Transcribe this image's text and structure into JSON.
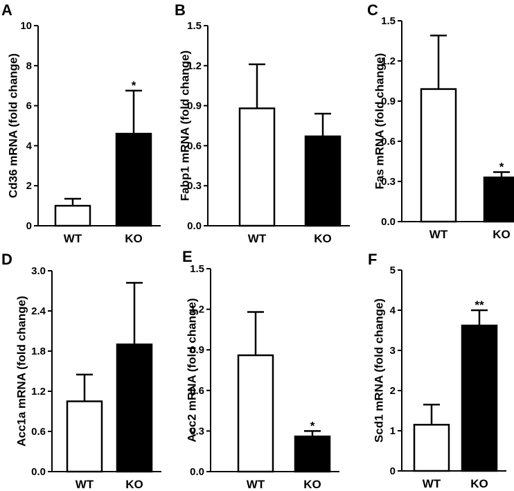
{
  "chart_data": [
    {
      "panel": "A",
      "type": "bar",
      "categories": [
        "WT",
        "KO"
      ],
      "values": [
        1.0,
        4.6
      ],
      "errors": [
        0.35,
        2.15
      ],
      "significance": [
        "",
        "*"
      ],
      "ylabel": "Cd36 mRNA (fold change)",
      "ylim": [
        0,
        10
      ],
      "yticks": [
        "0",
        "2",
        "4",
        "6",
        "8",
        "10"
      ],
      "colors": [
        "#ffffff",
        "#000000"
      ],
      "grid": false
    },
    {
      "panel": "B",
      "type": "bar",
      "categories": [
        "WT",
        "KO"
      ],
      "values": [
        0.88,
        0.67
      ],
      "errors": [
        0.33,
        0.17
      ],
      "significance": [
        "",
        ""
      ],
      "ylabel": "Fabp1 mRNA (fold change)",
      "ylim": [
        0,
        1.5
      ],
      "yticks": [
        "0.0",
        "0.3",
        "0.6",
        "0.9",
        "1.2",
        "1.5"
      ],
      "colors": [
        "#ffffff",
        "#000000"
      ],
      "grid": false
    },
    {
      "panel": "C",
      "type": "bar",
      "categories": [
        "WT",
        "KO"
      ],
      "values": [
        0.99,
        0.33
      ],
      "errors": [
        0.4,
        0.04
      ],
      "significance": [
        "",
        "*"
      ],
      "ylabel": "Fas mRNA (fold change)",
      "ylim": [
        0,
        1.5
      ],
      "yticks": [
        "0.0",
        "0.3",
        "0.6",
        "0.9",
        "1.2",
        "1.5"
      ],
      "colors": [
        "#ffffff",
        "#000000"
      ],
      "grid": false
    },
    {
      "panel": "D",
      "type": "bar",
      "categories": [
        "WT",
        "KO"
      ],
      "values": [
        1.05,
        1.9
      ],
      "errors": [
        0.4,
        0.92
      ],
      "significance": [
        "",
        ""
      ],
      "ylabel": "Acc1a mRNA (fold change)",
      "ylim": [
        0,
        3.0
      ],
      "yticks": [
        "0.0",
        "0.6",
        "1.2",
        "1.8",
        "2.4",
        "3.0"
      ],
      "colors": [
        "#ffffff",
        "#000000"
      ],
      "grid": false
    },
    {
      "panel": "E",
      "type": "bar",
      "categories": [
        "WT",
        "KO"
      ],
      "values": [
        0.86,
        0.26
      ],
      "errors": [
        0.32,
        0.04
      ],
      "significance": [
        "",
        "*"
      ],
      "ylabel": "Acc2 mRNA (fold change)",
      "ylim": [
        0,
        1.5
      ],
      "yticks": [
        "0.0",
        "0.3",
        "0.6",
        "0.9",
        "1.2",
        "1.5"
      ],
      "colors": [
        "#ffffff",
        "#000000"
      ],
      "grid": false
    },
    {
      "panel": "F",
      "type": "bar",
      "categories": [
        "WT",
        "KO"
      ],
      "values": [
        1.15,
        3.62
      ],
      "errors": [
        0.5,
        0.38
      ],
      "significance": [
        "",
        "**"
      ],
      "ylabel": "Scd1 mRNA (fold change)",
      "ylim": [
        0,
        5
      ],
      "yticks": [
        "0",
        "1",
        "2",
        "3",
        "4",
        "5"
      ],
      "colors": [
        "#ffffff",
        "#000000"
      ],
      "grid": false
    }
  ]
}
